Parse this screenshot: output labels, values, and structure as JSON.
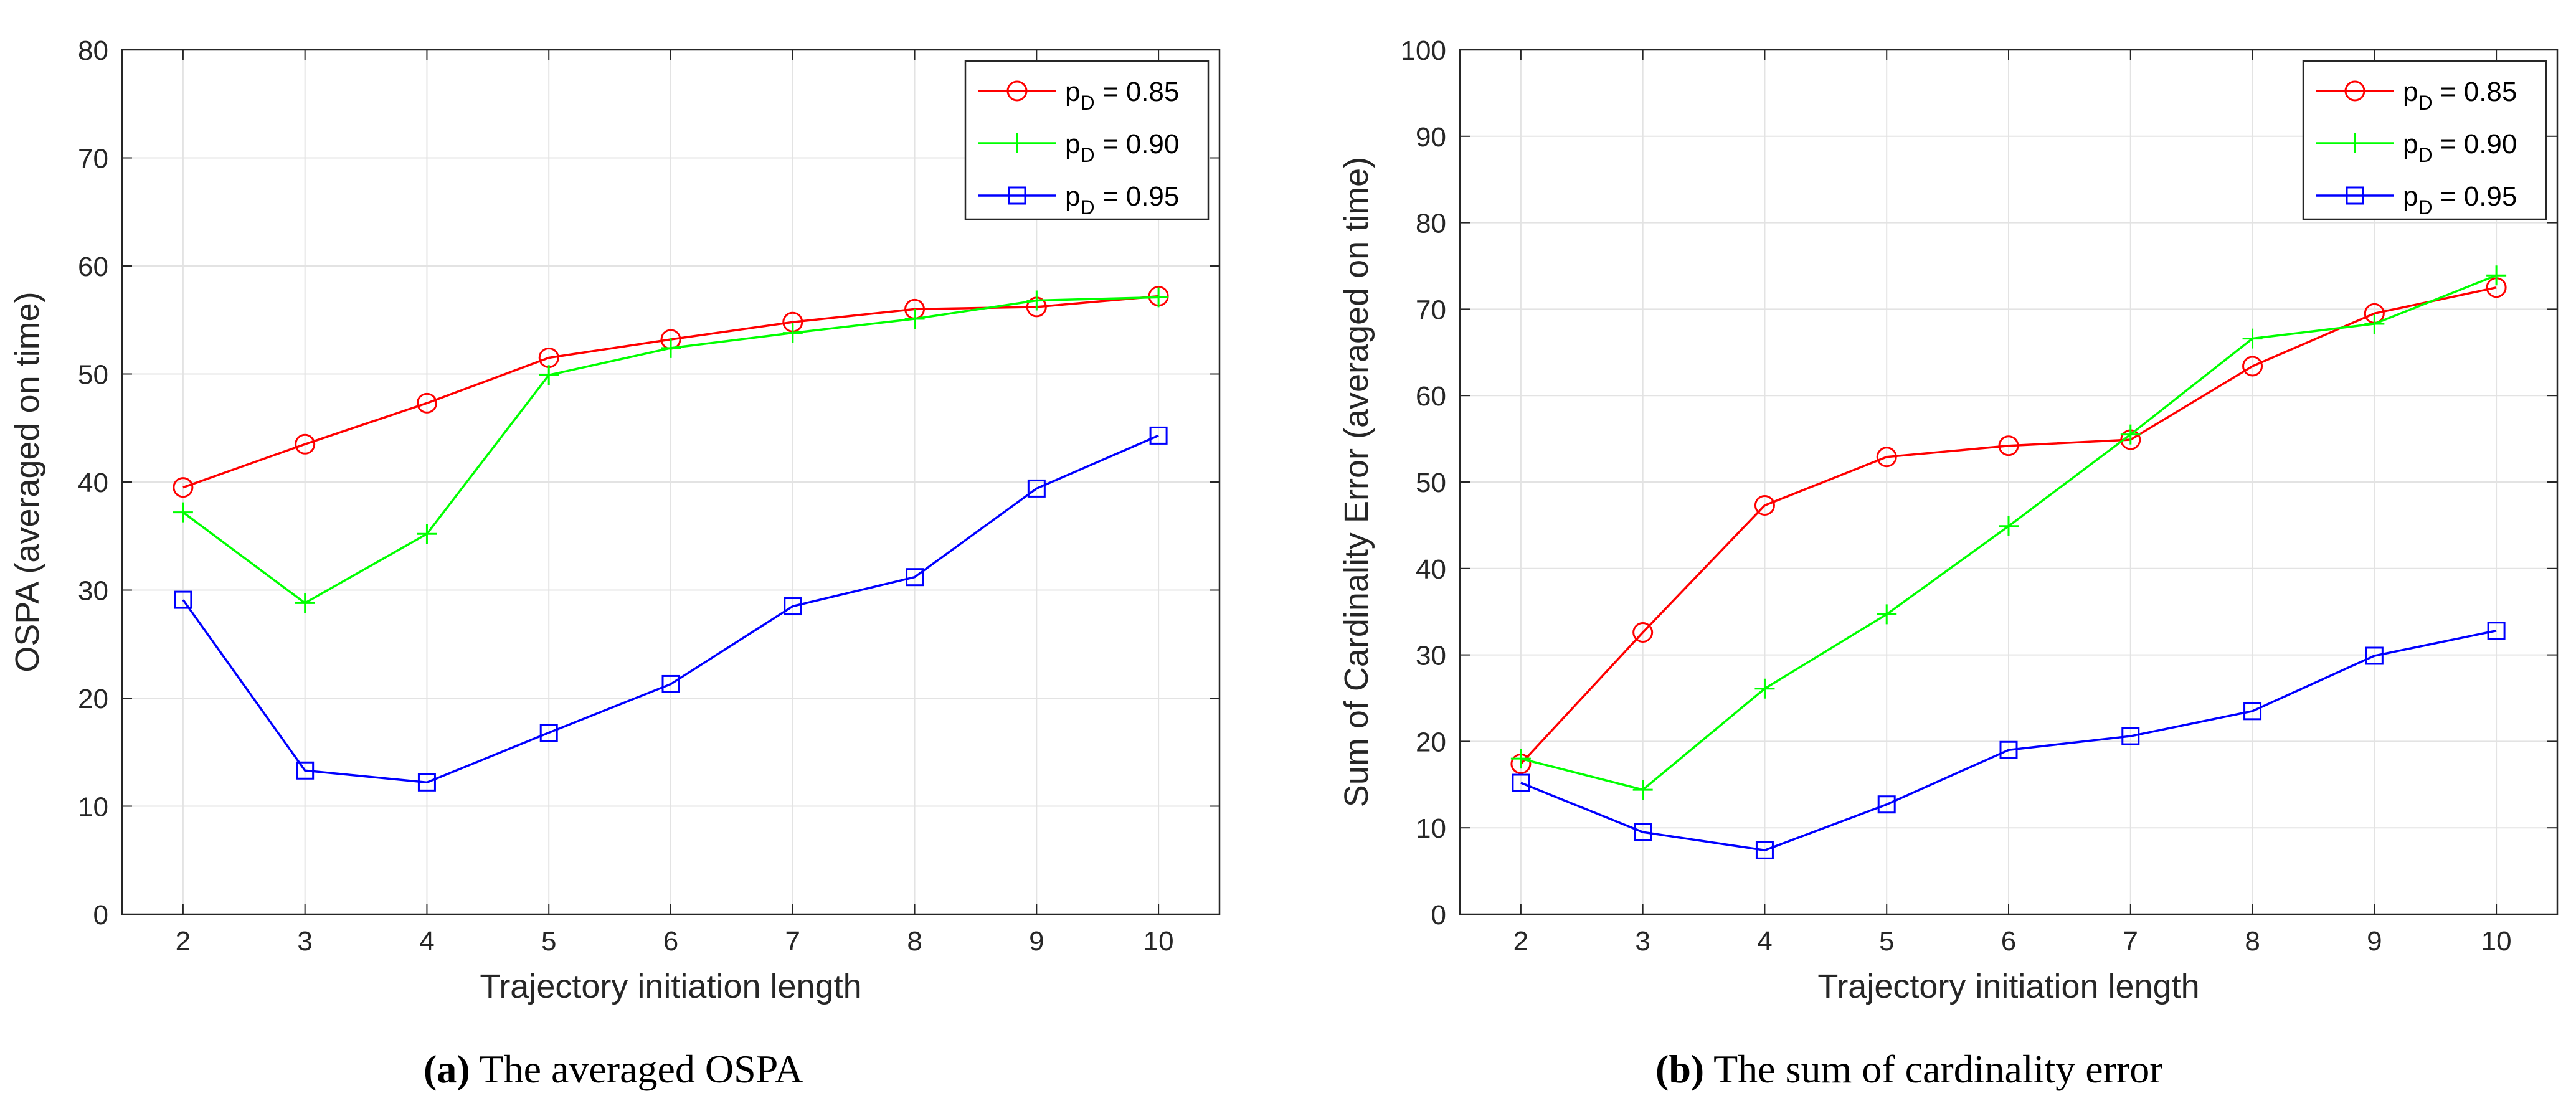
{
  "chart_data": [
    {
      "type": "line",
      "xlabel": "Trajectory initiation length",
      "ylabel": "OSPA (averaged on time)",
      "x": [
        2,
        3,
        4,
        5,
        6,
        7,
        8,
        9,
        10
      ],
      "xlim": [
        1.5,
        10.5
      ],
      "ylim": [
        0,
        80
      ],
      "xticks": [
        2,
        3,
        4,
        5,
        6,
        7,
        8,
        9,
        10
      ],
      "yticks": [
        0,
        10,
        20,
        30,
        40,
        50,
        60,
        70,
        80
      ],
      "grid": true,
      "legend_position": "top-right",
      "caption": {
        "tag": "(a)",
        "text": "The averaged OSPA"
      },
      "series": [
        {
          "name": "p_D = 0.85",
          "label_main": "p",
          "label_sub": "D",
          "label_value": " = 0.85",
          "color": "#ff0000",
          "marker": "circle",
          "values": [
            39.5,
            43.5,
            47.3,
            51.5,
            53.2,
            54.8,
            56.0,
            56.2,
            57.2
          ]
        },
        {
          "name": "p_D = 0.90",
          "label_main": "p",
          "label_sub": "D",
          "label_value": " = 0.90",
          "color": "#00ff00",
          "marker": "plus",
          "values": [
            37.2,
            28.8,
            35.2,
            49.9,
            52.4,
            53.8,
            55.1,
            56.8,
            57.1
          ]
        },
        {
          "name": "p_D = 0.95",
          "label_main": "p",
          "label_sub": "D",
          "label_value": " = 0.95",
          "color": "#0000ff",
          "marker": "square",
          "values": [
            29.1,
            13.3,
            12.2,
            16.8,
            21.3,
            28.5,
            31.2,
            39.4,
            44.3
          ]
        }
      ]
    },
    {
      "type": "line",
      "xlabel": "Trajectory initiation length",
      "ylabel": "Sum of Cardinality Error (averaged on time)",
      "x": [
        2,
        3,
        4,
        5,
        6,
        7,
        8,
        9,
        10
      ],
      "xlim": [
        1.5,
        10.5
      ],
      "ylim": [
        0,
        100
      ],
      "xticks": [
        2,
        3,
        4,
        5,
        6,
        7,
        8,
        9,
        10
      ],
      "yticks": [
        0,
        10,
        20,
        30,
        40,
        50,
        60,
        70,
        80,
        90,
        100
      ],
      "grid": true,
      "legend_position": "top-right",
      "caption": {
        "tag": "(b)",
        "text": "The sum of cardinality error"
      },
      "series": [
        {
          "name": "p_D = 0.85",
          "label_main": "p",
          "label_sub": "D",
          "label_value": " = 0.85",
          "color": "#ff0000",
          "marker": "circle",
          "values": [
            17.4,
            32.6,
            47.3,
            52.9,
            54.2,
            54.9,
            63.4,
            69.5,
            72.5
          ]
        },
        {
          "name": "p_D = 0.90",
          "label_main": "p",
          "label_sub": "D",
          "label_value": " = 0.90",
          "color": "#00ff00",
          "marker": "plus",
          "values": [
            18.0,
            14.4,
            26.1,
            34.7,
            44.9,
            55.5,
            66.6,
            68.3,
            73.9
          ]
        },
        {
          "name": "p_D = 0.95",
          "label_main": "p",
          "label_sub": "D",
          "label_value": " = 0.95",
          "color": "#0000ff",
          "marker": "square",
          "values": [
            15.2,
            9.5,
            7.4,
            12.7,
            19.0,
            20.6,
            23.5,
            29.9,
            32.8
          ]
        }
      ]
    }
  ]
}
